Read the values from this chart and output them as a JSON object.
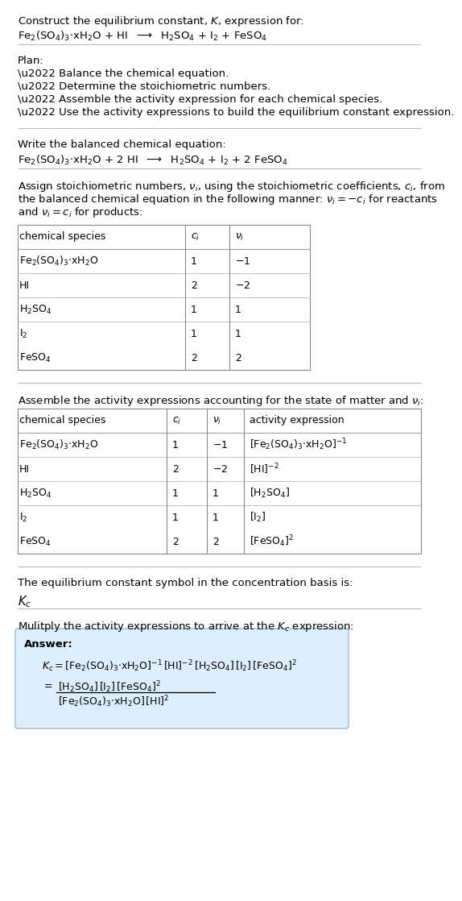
{
  "bg_color": "#ffffff",
  "text_color": "#000000",
  "blue_box_color": "#ddeeff",
  "blue_box_edge": "#99bbdd",
  "title_line1": "Construct the equilibrium constant, $K$, expression for:",
  "title_line2": "$\\mathrm{Fe_2(SO_4)_3{\\cdot}xH_2O}$ + HI  $\\longrightarrow$  $\\mathrm{H_2SO_4}$ + $\\mathrm{I_2}$ + $\\mathrm{FeSO_4}$",
  "plan_header": "Plan:",
  "plan_bullets": [
    "\\u2022 Balance the chemical equation.",
    "\\u2022 Determine the stoichiometric numbers.",
    "\\u2022 Assemble the activity expression for each chemical species.",
    "\\u2022 Use the activity expressions to build the equilibrium constant expression."
  ],
  "balanced_header": "Write the balanced chemical equation:",
  "balanced_eq": "$\\mathrm{Fe_2(SO_4)_3{\\cdot}xH_2O}$ + 2 HI  $\\longrightarrow$  $\\mathrm{H_2SO_4}$ + $\\mathrm{I_2}$ + 2 $\\mathrm{FeSO_4}$",
  "stoich_para": "Assign stoichiometric numbers, $\\nu_i$, using the stoichiometric coefficients, $c_i$, from the balanced chemical equation in the following manner: $\\nu_i = -c_i$ for reactants and $\\nu_i = c_i$ for products:",
  "table1_header": [
    "chemical species",
    "$c_i$",
    "$\\nu_i$"
  ],
  "table1_rows": [
    [
      "$\\mathrm{Fe_2(SO_4)_3{\\cdot}xH_2O}$",
      "1",
      "$-1$"
    ],
    [
      "HI",
      "2",
      "$-2$"
    ],
    [
      "$\\mathrm{H_2SO_4}$",
      "1",
      "1"
    ],
    [
      "$\\mathrm{I_2}$",
      "1",
      "1"
    ],
    [
      "$\\mathrm{FeSO_4}$",
      "2",
      "2"
    ]
  ],
  "activity_header": "Assemble the activity expressions accounting for the state of matter and $\\nu_i$:",
  "table2_header": [
    "chemical species",
    "$c_i$",
    "$\\nu_i$",
    "activity expression"
  ],
  "table2_rows": [
    [
      "$\\mathrm{Fe_2(SO_4)_3{\\cdot}xH_2O}$",
      "1",
      "$-1$",
      "$[\\mathrm{Fe_2(SO_4)_3{\\cdot}xH_2O}]^{-1}$"
    ],
    [
      "HI",
      "2",
      "$-2$",
      "$[\\mathrm{HI}]^{-2}$"
    ],
    [
      "$\\mathrm{H_2SO_4}$",
      "1",
      "1",
      "$[\\mathrm{H_2SO_4}]$"
    ],
    [
      "$\\mathrm{I_2}$",
      "1",
      "1",
      "$[\\mathrm{I_2}]$"
    ],
    [
      "$\\mathrm{FeSO_4}$",
      "2",
      "2",
      "$[\\mathrm{FeSO_4}]^2$"
    ]
  ],
  "kc_para": "The equilibrium constant symbol in the concentration basis is:",
  "kc_symbol": "$K_c$",
  "multiply_header": "Mulitply the activity expressions to arrive at the $K_c$ expression:",
  "answer_label": "Answer:",
  "kc_line1": "$K_c = [\\mathrm{Fe_2(SO_4)_3{\\cdot}xH_2O}]^{-1}\\,[\\mathrm{HI}]^{-2}\\,[\\mathrm{H_2SO_4}]\\,[\\mathrm{I_2}]\\,[\\mathrm{FeSO_4}]^2$",
  "kc_num": "$[\\mathrm{H_2SO_4}]\\,[\\mathrm{I_2}]\\,[\\mathrm{FeSO_4}]^2$",
  "kc_den": "$[\\mathrm{Fe_2(SO_4)_3{\\cdot}xH_2O}]\\,[\\mathrm{HI}]^2$"
}
